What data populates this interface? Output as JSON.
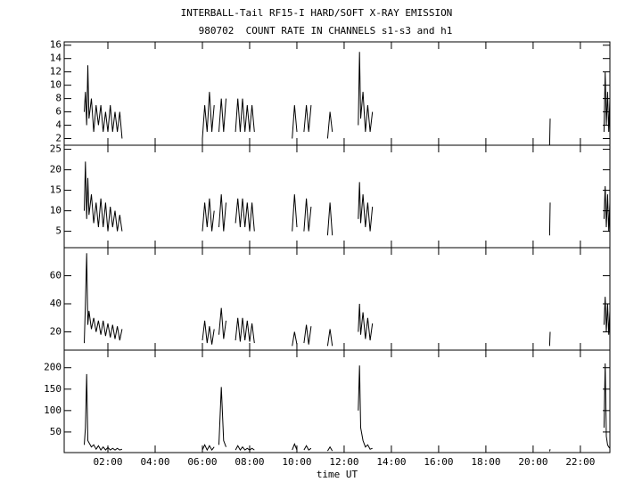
{
  "chart_data": [
    {
      "type": "line",
      "title": "INTERBALL-Tail RF15-I HARD/SOFT X-RAY EMISSION",
      "subtitle": "980702  COUNT RATE IN CHANNELS s1-s3 and h1",
      "color": "#000000",
      "xlim": [
        0.15,
        23.25
      ],
      "ylim": [
        1,
        16.5
      ],
      "yticks": [
        2,
        4,
        6,
        8,
        10,
        12,
        14,
        16
      ],
      "x": [
        1.0,
        1.05,
        1.1,
        1.15,
        1.2,
        1.3,
        1.4,
        1.5,
        1.6,
        1.7,
        1.8,
        1.9,
        2.0,
        2.1,
        2.2,
        2.3,
        2.4,
        2.5,
        2.6,
        4.0,
        6.0,
        6.1,
        6.2,
        6.3,
        6.4,
        6.5,
        6.6,
        6.7,
        6.8,
        6.9,
        7.0,
        7.2,
        7.4,
        7.5,
        7.6,
        7.7,
        7.8,
        7.9,
        8.0,
        8.1,
        8.2,
        9.0,
        9.8,
        9.9,
        10.0,
        10.15,
        10.3,
        10.4,
        10.5,
        10.6,
        11.0,
        11.3,
        11.4,
        11.5,
        12.0,
        12.6,
        12.65,
        12.7,
        12.8,
        12.9,
        13.0,
        13.1,
        13.2,
        17.0,
        20.7,
        20.72,
        22.0,
        23.0,
        23.05,
        23.1,
        23.15,
        23.2,
        23.25
      ],
      "values": [
        6,
        9,
        4,
        13,
        5,
        8,
        3,
        7,
        4,
        7,
        3,
        6,
        3,
        7,
        3,
        6,
        3,
        6,
        2,
        null,
        2,
        7,
        3,
        9,
        3,
        7,
        null,
        3,
        8,
        3,
        8,
        null,
        3,
        8,
        3,
        8,
        3,
        7,
        3,
        7,
        3,
        null,
        2,
        7,
        3,
        null,
        3,
        7,
        3,
        7,
        null,
        2,
        6,
        3,
        null,
        4,
        15,
        5,
        9,
        3,
        7,
        3,
        6,
        null,
        1,
        5,
        null,
        3,
        12,
        4,
        9,
        3,
        8
      ]
    },
    {
      "type": "line",
      "color": "#000000",
      "xlim": [
        0.15,
        23.25
      ],
      "ylim": [
        1,
        26
      ],
      "yticks": [
        5,
        10,
        15,
        20,
        25
      ],
      "x": [
        1.0,
        1.05,
        1.1,
        1.15,
        1.2,
        1.3,
        1.4,
        1.5,
        1.6,
        1.7,
        1.8,
        1.9,
        2.0,
        2.1,
        2.2,
        2.3,
        2.4,
        2.5,
        2.6,
        4.0,
        6.0,
        6.1,
        6.2,
        6.3,
        6.4,
        6.5,
        6.6,
        6.7,
        6.8,
        6.9,
        7.0,
        7.2,
        7.4,
        7.5,
        7.6,
        7.7,
        7.8,
        7.9,
        8.0,
        8.1,
        8.2,
        9.0,
        9.8,
        9.9,
        10.0,
        10.15,
        10.3,
        10.4,
        10.5,
        10.6,
        11.0,
        11.3,
        11.4,
        11.5,
        12.0,
        12.6,
        12.65,
        12.7,
        12.8,
        12.9,
        13.0,
        13.1,
        13.2,
        17.0,
        20.7,
        20.72,
        22.0,
        23.0,
        23.05,
        23.1,
        23.15,
        23.2,
        23.25
      ],
      "values": [
        10,
        22,
        8,
        18,
        9,
        14,
        7,
        12,
        6,
        13,
        6,
        12,
        5,
        11,
        6,
        10,
        5,
        9,
        5,
        null,
        5,
        12,
        6,
        13,
        5,
        10,
        null,
        6,
        14,
        5,
        12,
        null,
        7,
        13,
        6,
        13,
        6,
        12,
        5,
        12,
        5,
        null,
        5,
        14,
        6,
        null,
        5,
        13,
        5,
        11,
        null,
        4,
        12,
        4,
        null,
        8,
        17,
        7,
        14,
        6,
        12,
        5,
        11,
        null,
        4,
        12,
        null,
        8,
        16,
        6,
        14,
        5,
        12
      ]
    },
    {
      "type": "line",
      "color": "#000000",
      "xlim": [
        0.15,
        23.25
      ],
      "ylim": [
        7,
        80
      ],
      "yticks": [
        20,
        40,
        60
      ],
      "x": [
        1.0,
        1.05,
        1.1,
        1.15,
        1.2,
        1.3,
        1.4,
        1.5,
        1.6,
        1.7,
        1.8,
        1.9,
        2.0,
        2.1,
        2.2,
        2.3,
        2.4,
        2.5,
        2.6,
        4.0,
        6.0,
        6.1,
        6.2,
        6.3,
        6.4,
        6.5,
        6.6,
        6.7,
        6.8,
        6.9,
        7.0,
        7.2,
        7.4,
        7.5,
        7.6,
        7.7,
        7.8,
        7.9,
        8.0,
        8.1,
        8.2,
        9.0,
        9.8,
        9.9,
        10.0,
        10.15,
        10.3,
        10.4,
        10.5,
        10.6,
        11.0,
        11.3,
        11.4,
        11.5,
        12.0,
        12.6,
        12.65,
        12.7,
        12.8,
        12.9,
        13.0,
        13.1,
        13.2,
        17.0,
        20.7,
        20.72,
        22.0,
        23.0,
        23.05,
        23.1,
        23.15,
        23.2,
        23.25
      ],
      "values": [
        12,
        40,
        76,
        25,
        35,
        22,
        30,
        20,
        28,
        18,
        28,
        17,
        26,
        16,
        25,
        15,
        24,
        14,
        22,
        null,
        14,
        28,
        12,
        24,
        11,
        22,
        null,
        18,
        37,
        15,
        28,
        null,
        14,
        30,
        13,
        30,
        14,
        28,
        13,
        26,
        12,
        null,
        10,
        20,
        11,
        null,
        12,
        25,
        11,
        24,
        null,
        10,
        22,
        10,
        null,
        20,
        40,
        18,
        34,
        15,
        30,
        14,
        26,
        null,
        10,
        20,
        null,
        25,
        45,
        20,
        40,
        18,
        35
      ]
    },
    {
      "type": "line",
      "color": "#000000",
      "xlim": [
        0.15,
        23.25
      ],
      "ylim": [
        2,
        241
      ],
      "yticks": [
        50,
        100,
        150,
        200
      ],
      "xlabel": "time UT",
      "xticks": [
        {
          "value": 2,
          "label": "02:00"
        },
        {
          "value": 4,
          "label": "04:00"
        },
        {
          "value": 6,
          "label": "06:00"
        },
        {
          "value": 8,
          "label": "08:00"
        },
        {
          "value": 10,
          "label": "10:00"
        },
        {
          "value": 12,
          "label": "12:00"
        },
        {
          "value": 14,
          "label": "14:00"
        },
        {
          "value": 16,
          "label": "16:00"
        },
        {
          "value": 18,
          "label": "18:00"
        },
        {
          "value": 20,
          "label": "20:00"
        },
        {
          "value": 22,
          "label": "22:00"
        }
      ],
      "x": [
        1.0,
        1.05,
        1.1,
        1.15,
        1.2,
        1.3,
        1.4,
        1.5,
        1.6,
        1.7,
        1.8,
        1.9,
        2.0,
        2.1,
        2.2,
        2.3,
        2.4,
        2.5,
        2.6,
        4.0,
        6.0,
        6.1,
        6.2,
        6.3,
        6.4,
        6.5,
        6.6,
        6.7,
        6.8,
        6.9,
        7.0,
        7.2,
        7.4,
        7.5,
        7.6,
        7.7,
        7.8,
        7.9,
        8.0,
        8.1,
        8.2,
        9.0,
        9.8,
        9.9,
        10.0,
        10.15,
        10.3,
        10.4,
        10.5,
        10.6,
        11.0,
        11.3,
        11.4,
        11.5,
        12.0,
        12.6,
        12.65,
        12.7,
        12.8,
        12.9,
        13.0,
        13.1,
        13.2,
        17.0,
        20.7,
        20.72,
        22.0,
        23.0,
        23.05,
        23.1,
        23.15,
        23.2,
        23.25
      ],
      "values": [
        20,
        60,
        185,
        30,
        25,
        15,
        20,
        10,
        18,
        8,
        15,
        8,
        14,
        8,
        12,
        8,
        12,
        8,
        10,
        null,
        8,
        20,
        8,
        18,
        8,
        15,
        null,
        20,
        155,
        30,
        15,
        null,
        8,
        18,
        8,
        15,
        8,
        12,
        8,
        12,
        8,
        null,
        8,
        22,
        8,
        null,
        8,
        18,
        8,
        12,
        null,
        6,
        15,
        6,
        null,
        100,
        205,
        60,
        30,
        15,
        20,
        10,
        12,
        null,
        5,
        10,
        null,
        60,
        210,
        40,
        20,
        15,
        12
      ]
    }
  ]
}
